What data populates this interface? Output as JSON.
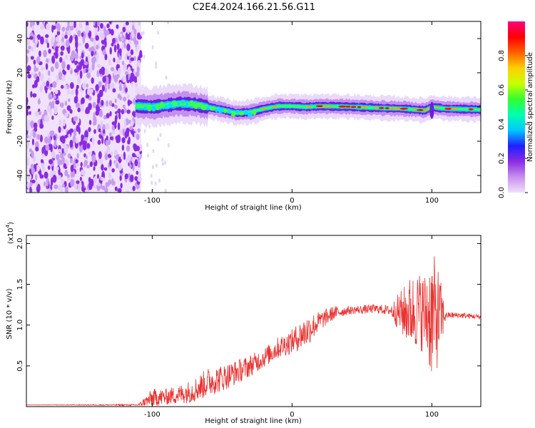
{
  "title": "C2E4.2024.166.21.56.G11",
  "chart_data": [
    {
      "type": "heatmap",
      "xlabel": "Height of straight line (km)",
      "ylabel": "Frequency (Hz)",
      "xlim": [
        -190,
        135
      ],
      "ylim": [
        -50,
        50
      ],
      "xticks": [
        -100,
        0,
        100
      ],
      "yticks": [
        -40,
        -20,
        0,
        20,
        40
      ],
      "colorbar": {
        "label": "Normalized spectral amplitude",
        "range": [
          0,
          1
        ],
        "ticks": [
          "0.0",
          "0.2",
          "0.4",
          "0.6",
          "0.8"
        ],
        "colors": [
          "#f0e0f8",
          "#c890f0",
          "#8a2be2",
          "#2020ff",
          "#00c8ff",
          "#00ffb0",
          "#30ff30",
          "#c8ff00",
          "#ffd000",
          "#ff6000",
          "#ff0000",
          "#ff0080"
        ]
      },
      "ridge": {
        "height_km": [
          -110,
          -100,
          -90,
          -80,
          -70,
          -60,
          -50,
          -40,
          -30,
          -20,
          -10,
          0,
          10,
          20,
          40,
          60,
          80,
          95,
          100,
          110,
          135
        ],
        "frequency_hz": [
          0.5,
          0,
          1,
          2,
          1.5,
          0,
          -1.5,
          -3.5,
          -3,
          -1,
          0.5,
          0.5,
          0,
          0.5,
          0.2,
          -0.5,
          -1,
          -2,
          0,
          -1,
          -1.5
        ]
      },
      "noise_region_km": [
        -190,
        -108
      ]
    },
    {
      "type": "line",
      "xlabel": "Height of straight line (km)",
      "ylabel": "SNR (10 * v/v)",
      "y_multiplier": "(x10",
      "y_multiplier_exp": "4",
      "y_multiplier_close": ")",
      "xlim": [
        -190,
        135
      ],
      "ylim": [
        0,
        2.1
      ],
      "xticks": [
        -100,
        0,
        100
      ],
      "yticks": [
        "0.5",
        "1.0",
        "1.5",
        "2.0"
      ],
      "color": "#e8312e",
      "envelope": {
        "height_km": [
          -190,
          -110,
          -100,
          -90,
          -80,
          -70,
          -60,
          -50,
          -40,
          -30,
          -20,
          -10,
          0,
          10,
          20,
          30,
          40,
          60,
          70,
          80,
          90,
          95,
          100,
          105,
          110,
          120,
          135
        ],
        "snr_x1e4": [
          0.02,
          0.02,
          0.1,
          0.12,
          0.15,
          0.2,
          0.3,
          0.35,
          0.42,
          0.5,
          0.6,
          0.72,
          0.8,
          0.92,
          1.05,
          1.15,
          1.18,
          1.2,
          1.18,
          1.15,
          1.18,
          1.15,
          1.12,
          1.1,
          1.12,
          1.12,
          1.1
        ]
      },
      "spread": {
        "height_km": [
          -190,
          -110,
          -100,
          -90,
          -80,
          -60,
          -40,
          -20,
          0,
          10,
          20,
          40,
          70,
          75,
          85,
          95,
          100,
          105,
          110,
          135
        ],
        "amplitude": [
          0.0,
          0.01,
          0.12,
          0.1,
          0.12,
          0.18,
          0.15,
          0.12,
          0.15,
          0.2,
          0.12,
          0.05,
          0.06,
          0.2,
          0.45,
          0.5,
          0.8,
          0.6,
          0.04,
          0.03
        ]
      }
    }
  ]
}
